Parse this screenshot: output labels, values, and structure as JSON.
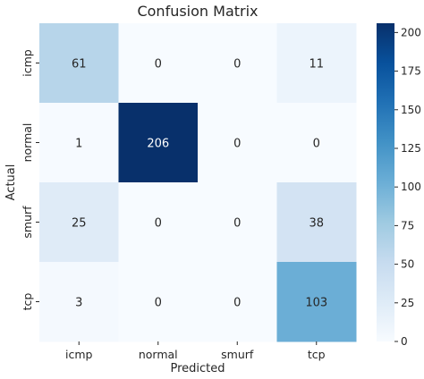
{
  "chart_data": {
    "type": "heatmap",
    "title": "Confusion Matrix",
    "xlabel": "Predicted",
    "ylabel": "Actual",
    "x_categories": [
      "icmp",
      "normal",
      "smurf",
      "tcp"
    ],
    "y_categories": [
      "icmp",
      "normal",
      "smurf",
      "tcp"
    ],
    "values": [
      [
        61,
        0,
        0,
        11
      ],
      [
        1,
        206,
        0,
        0
      ],
      [
        25,
        0,
        0,
        38
      ],
      [
        3,
        0,
        0,
        103
      ]
    ],
    "colormap": "Blues",
    "vmin": 0,
    "vmax": 206,
    "colorbar_ticks": [
      0,
      25,
      50,
      75,
      100,
      125,
      150,
      175,
      200
    ]
  }
}
